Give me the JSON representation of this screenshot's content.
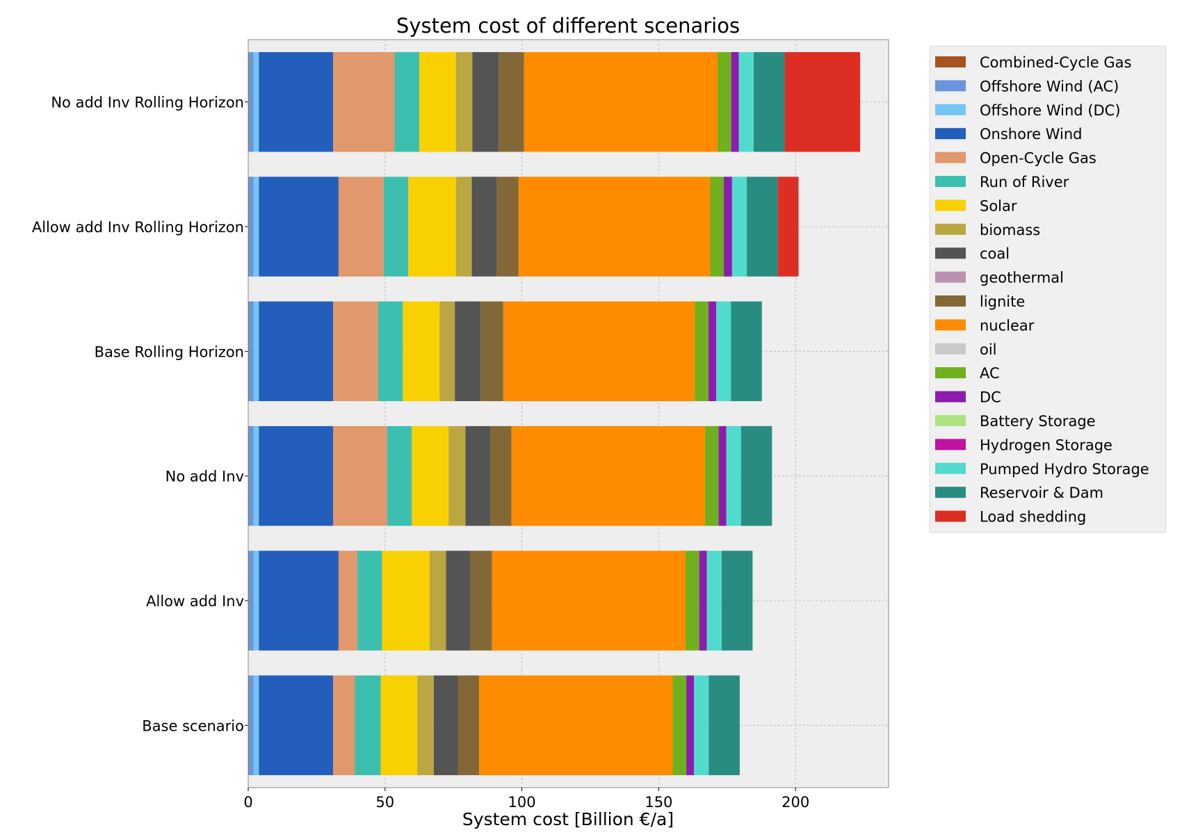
{
  "chart_data": {
    "type": "bar",
    "orientation": "horizontal",
    "stacked": true,
    "title": "System cost of different scenarios",
    "xlabel": "System cost [Billion €/a]",
    "ylabel": "",
    "xlim": [
      0,
      234
    ],
    "xticks": [
      0,
      50,
      100,
      150,
      200
    ],
    "grid": true,
    "legend_position": "outside-top-right",
    "categories": [
      "No add Inv Rolling Horizon",
      "Allow add Inv Rolling Horizon",
      "Base Rolling Horizon",
      "No add Inv",
      "Allow add Inv",
      "Base scenario"
    ],
    "series": [
      {
        "name": "Combined-Cycle Gas",
        "color": "#a8531f",
        "values": [
          0.3,
          0.3,
          0.3,
          0.3,
          0.3,
          0.3
        ]
      },
      {
        "name": "Offshore Wind (AC)",
        "color": "#6895dd",
        "values": [
          1.6,
          1.6,
          1.6,
          1.6,
          1.6,
          1.6
        ]
      },
      {
        "name": "Offshore Wind (DC)",
        "color": "#74c6f2",
        "values": [
          2.0,
          2.0,
          2.0,
          2.0,
          2.0,
          2.0
        ]
      },
      {
        "name": "Onshore Wind",
        "color": "#235ebc",
        "values": [
          27.1,
          29.1,
          27.1,
          27.1,
          29.1,
          27.1
        ]
      },
      {
        "name": "Open-Cycle Gas",
        "color": "#e0986c",
        "values": [
          22.5,
          16.5,
          16.5,
          19.8,
          6.9,
          8.0
        ]
      },
      {
        "name": "Run of River",
        "color": "#3dbfb0",
        "values": [
          9.0,
          9.0,
          9.0,
          9.0,
          9.0,
          9.4
        ]
      },
      {
        "name": "Solar",
        "color": "#f9d002",
        "values": [
          13.4,
          17.4,
          13.4,
          13.4,
          17.4,
          13.4
        ]
      },
      {
        "name": "biomass",
        "color": "#baa741",
        "values": [
          6.0,
          5.8,
          5.6,
          6.2,
          6.0,
          6.0
        ]
      },
      {
        "name": "coal",
        "color": "#545454",
        "values": [
          9.6,
          9.0,
          9.4,
          9.0,
          8.9,
          8.8
        ]
      },
      {
        "name": "geothermal",
        "color": "#ba91b1",
        "values": [
          0.0,
          0.0,
          0.0,
          0.0,
          0.0,
          0.0
        ]
      },
      {
        "name": "lignite",
        "color": "#826837",
        "values": [
          9.3,
          8.1,
          8.3,
          7.8,
          7.9,
          7.8
        ]
      },
      {
        "name": "nuclear",
        "color": "#ff8c00",
        "values": [
          70.7,
          70.0,
          70.0,
          70.7,
          70.7,
          70.7
        ]
      },
      {
        "name": "oil",
        "color": "#c9c9c9",
        "values": [
          0.0,
          0.0,
          0.0,
          0.0,
          0.0,
          0.0
        ]
      },
      {
        "name": "AC",
        "color": "#70af1d",
        "values": [
          5.0,
          5.0,
          5.0,
          5.0,
          5.0,
          5.0
        ]
      },
      {
        "name": "DC",
        "color": "#8a1caf",
        "values": [
          2.8,
          3.0,
          2.8,
          2.8,
          2.8,
          2.8
        ]
      },
      {
        "name": "Battery Storage",
        "color": "#ace37f",
        "values": [
          0.0,
          0.0,
          0.0,
          0.0,
          0.0,
          0.0
        ]
      },
      {
        "name": "Hydrogen Storage",
        "color": "#bf13a0",
        "values": [
          0.0,
          0.0,
          0.0,
          0.0,
          0.0,
          0.0
        ]
      },
      {
        "name": "Pumped Hydro Storage",
        "color": "#51dbcc",
        "values": [
          5.4,
          5.4,
          5.4,
          5.4,
          5.4,
          5.4
        ]
      },
      {
        "name": "Reservoir & Dam",
        "color": "#298c81",
        "values": [
          11.3,
          11.3,
          11.3,
          11.3,
          11.3,
          11.3
        ]
      },
      {
        "name": "Load shedding",
        "color": "#dd2e23",
        "values": [
          27.6,
          7.6,
          0.0,
          0.0,
          0.0,
          0.0
        ]
      }
    ]
  }
}
